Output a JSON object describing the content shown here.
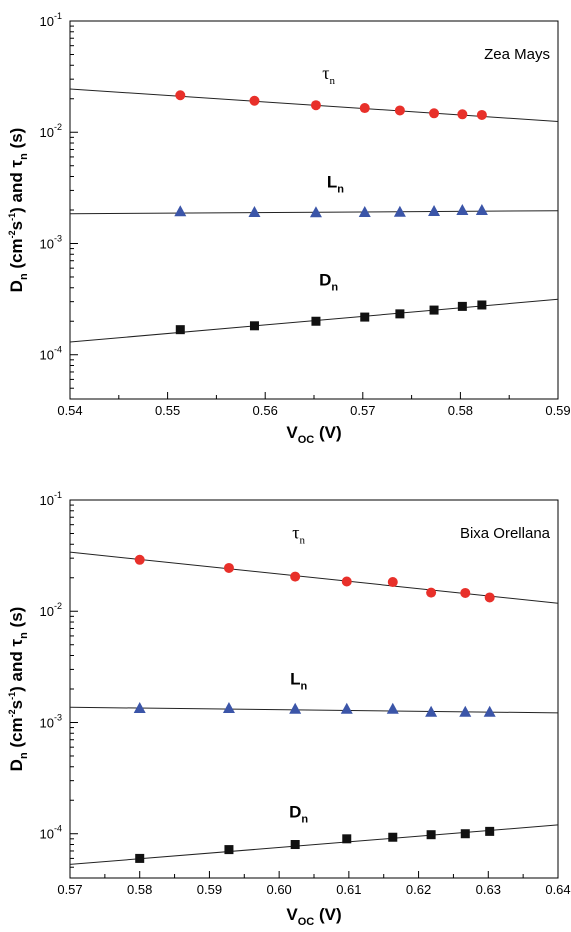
{
  "chart_data": [
    {
      "type": "scatter",
      "annotation": "Zea Mays",
      "xlabel": {
        "main": "V",
        "sub": "OC",
        "rest": " (V)"
      },
      "ylabel": {
        "p1": "D",
        "p1sub": "n",
        "p2": " (cm",
        "p2sup": "-2",
        "p3": "s",
        "p3sup": "-1",
        "p4": ") and ",
        "p5": "τ",
        "p5sub": "n",
        "p6": " (s)"
      },
      "xlim": [
        0.54,
        0.59
      ],
      "ylim": [
        4e-05,
        0.1
      ],
      "log_y": true,
      "x_ticks": [
        "0.54",
        "0.55",
        "0.56",
        "0.57",
        "0.58",
        "0.59"
      ],
      "x_tick_values": [
        0.54,
        0.55,
        0.56,
        0.57,
        0.58,
        0.59
      ],
      "y_ticks": [
        {
          "value": 0.1,
          "base": "10",
          "exp": "-1"
        },
        {
          "value": 0.01,
          "base": "10",
          "exp": "-2"
        },
        {
          "value": 0.001,
          "base": "10",
          "exp": "-3"
        },
        {
          "value": 0.0001,
          "base": "10",
          "exp": "-4"
        }
      ],
      "series": [
        {
          "name": "τ",
          "sub": "n",
          "label_style": "serif",
          "label_anchor": [
            0.5665,
            0.03
          ],
          "marker": "circle",
          "color": "#e8302a",
          "x": [
            0.5513,
            0.5589,
            0.5652,
            0.5702,
            0.5738,
            0.5773,
            0.5802,
            0.5822
          ],
          "y": [
            0.0215,
            0.0192,
            0.0175,
            0.0165,
            0.0157,
            0.0148,
            0.0145,
            0.0143
          ],
          "fit": {
            "x": [
              0.54,
              0.59
            ],
            "y": [
              0.0245,
              0.0125
            ]
          }
        },
        {
          "name": "L",
          "sub": "n",
          "label_style": "bold",
          "label_anchor": [
            0.5672,
            0.0032
          ],
          "marker": "triangle",
          "color": "#3b55a8",
          "x": [
            0.5513,
            0.5589,
            0.5652,
            0.5702,
            0.5738,
            0.5773,
            0.5802,
            0.5822
          ],
          "y": [
            0.00195,
            0.00192,
            0.00191,
            0.00192,
            0.00193,
            0.00196,
            0.002,
            0.002
          ],
          "fit": {
            "x": [
              0.54,
              0.59
            ],
            "y": [
              0.00185,
              0.00197
            ]
          }
        },
        {
          "name": "D",
          "sub": "n",
          "label_style": "bold",
          "label_anchor": [
            0.5665,
            0.00042
          ],
          "marker": "square",
          "color": "#111111",
          "x": [
            0.5513,
            0.5589,
            0.5652,
            0.5702,
            0.5738,
            0.5773,
            0.5802,
            0.5822
          ],
          "y": [
            0.000168,
            0.000182,
            0.0002,
            0.000218,
            0.000233,
            0.000252,
            0.000272,
            0.00028
          ],
          "fit": {
            "x": [
              0.54,
              0.59
            ],
            "y": [
              0.00013,
              0.000315
            ]
          }
        }
      ]
    },
    {
      "type": "scatter",
      "annotation": "Bixa Orellana",
      "xlabel": {
        "main": "V",
        "sub": "OC",
        "rest": " (V)"
      },
      "ylabel": {
        "p1": "D",
        "p1sub": "n",
        "p2": " (cm",
        "p2sup": "-2",
        "p3": "s",
        "p3sup": "-1",
        "p4": ") and ",
        "p5": "τ",
        "p5sub": "n",
        "p6": " (s)"
      },
      "xlim": [
        0.57,
        0.64
      ],
      "ylim": [
        4e-05,
        0.1
      ],
      "log_y": true,
      "x_ticks": [
        "0.57",
        "0.58",
        "0.59",
        "0.60",
        "0.61",
        "0.62",
        "0.63",
        "0.64"
      ],
      "x_tick_values": [
        0.57,
        0.58,
        0.59,
        0.6,
        0.61,
        0.62,
        0.63,
        0.64
      ],
      "y_ticks": [
        {
          "value": 0.1,
          "base": "10",
          "exp": "-1"
        },
        {
          "value": 0.01,
          "base": "10",
          "exp": "-2"
        },
        {
          "value": 0.001,
          "base": "10",
          "exp": "-3"
        },
        {
          "value": 0.0001,
          "base": "10",
          "exp": "-4"
        }
      ],
      "series": [
        {
          "name": "τ",
          "sub": "n",
          "label_style": "serif",
          "label_anchor": [
            0.6028,
            0.045
          ],
          "marker": "circle",
          "color": "#e8302a",
          "x": [
            0.58,
            0.5928,
            0.6023,
            0.6097,
            0.6163,
            0.6218,
            0.6267,
            0.6302
          ],
          "y": [
            0.029,
            0.0245,
            0.0205,
            0.0185,
            0.0183,
            0.0147,
            0.0146,
            0.0133
          ],
          "fit": {
            "x": [
              0.57,
              0.64
            ],
            "y": [
              0.034,
              0.0118
            ]
          }
        },
        {
          "name": "L",
          "sub": "n",
          "label_style": "bold",
          "label_anchor": [
            0.6028,
            0.0022
          ],
          "marker": "triangle",
          "color": "#3b55a8",
          "x": [
            0.58,
            0.5928,
            0.6023,
            0.6097,
            0.6163,
            0.6218,
            0.6267,
            0.6302
          ],
          "y": [
            0.00135,
            0.00135,
            0.00133,
            0.00133,
            0.00133,
            0.00125,
            0.00125,
            0.00125
          ],
          "fit": {
            "x": [
              0.57,
              0.64
            ],
            "y": [
              0.00137,
              0.00122
            ]
          }
        },
        {
          "name": "D",
          "sub": "n",
          "label_style": "bold",
          "label_anchor": [
            0.6028,
            0.00014
          ],
          "marker": "square",
          "color": "#111111",
          "x": [
            0.58,
            0.5928,
            0.6023,
            0.6097,
            0.6163,
            0.6218,
            0.6267,
            0.6302
          ],
          "y": [
            6e-05,
            7.2e-05,
            8e-05,
            9e-05,
            9.3e-05,
            9.8e-05,
            0.0001,
            0.000105
          ],
          "fit": {
            "x": [
              0.57,
              0.64
            ],
            "y": [
              5.3e-05,
              0.00012
            ]
          }
        }
      ]
    }
  ]
}
